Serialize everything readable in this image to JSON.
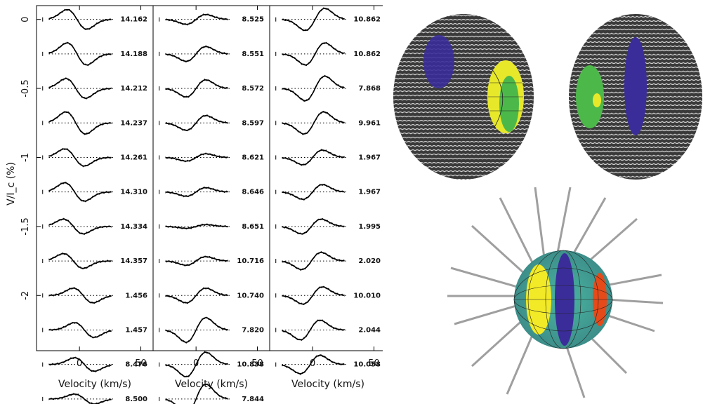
{
  "chart_data": {
    "type": "line",
    "ylabel": "V/I_c (%)",
    "y_ticks": [
      0,
      -0.5,
      -1,
      -1.5,
      -2
    ],
    "ylim": [
      -2.4,
      0.1
    ],
    "xlim": [
      -35,
      60
    ],
    "x_ticks": [
      0,
      50
    ],
    "line_spacing": 0.1,
    "panels": [
      {
        "xlabel": "Velocity (km/s)",
        "phases": [
          "14.162",
          "14.188",
          "14.212",
          "14.237",
          "14.261",
          "14.310",
          "14.334",
          "14.357",
          "1.456",
          "1.457",
          "8.476",
          "8.500"
        ],
        "amplitudes": [
          0.8,
          0.9,
          0.8,
          0.9,
          0.7,
          0.75,
          0.6,
          0.6,
          0.6,
          0.6,
          0.55,
          0.4
        ],
        "centers": [
          -2,
          -2,
          -3,
          -3,
          -4,
          -4,
          -5,
          -5,
          3,
          4,
          4,
          4
        ]
      },
      {
        "xlabel": "Velocity (km/s)",
        "phases": [
          "8.525",
          "8.551",
          "8.572",
          "8.597",
          "8.621",
          "8.646",
          "8.651",
          "10.716",
          "10.740",
          "7.820",
          "10.838",
          "7.844"
        ],
        "amplitudes": [
          -0.4,
          -0.6,
          -0.7,
          -0.6,
          -0.3,
          -0.35,
          -0.15,
          -0.35,
          -0.6,
          -1.0,
          -1.0,
          -1.2
        ],
        "centers": [
          0,
          0,
          0,
          0,
          0,
          0,
          0,
          0,
          0,
          0,
          0,
          0
        ]
      },
      {
        "xlabel": "Velocity (km/s)",
        "phases": [
          "10.862",
          "10.862",
          "7.868",
          "9.961",
          "1.967",
          "1.967",
          "1.995",
          "2.020",
          "10.010",
          "2.044",
          "10.058"
        ],
        "amplitudes": [
          -0.9,
          -0.9,
          -1.0,
          -0.9,
          -0.6,
          -0.6,
          -0.6,
          -0.7,
          -0.7,
          -0.8,
          -0.75
        ],
        "centers": [
          2,
          2,
          2,
          1,
          0,
          0,
          -1,
          -1,
          0,
          -2,
          -2
        ]
      }
    ]
  },
  "images": {
    "top_left": {
      "name": "magnetic-field-globe-view-1",
      "color_bands": [
        "#3a2d9a",
        "#e8e82a",
        "#4db84a"
      ]
    },
    "top_right": {
      "name": "magnetic-field-globe-view-2",
      "color_bands": [
        "#3a2d9a",
        "#4db84a"
      ]
    },
    "bottom": {
      "name": "magnetic-field-globe-view-3",
      "color_bands": [
        "#f2ea26",
        "#3a2d9a",
        "#49b6a0",
        "#e64a19"
      ]
    }
  }
}
